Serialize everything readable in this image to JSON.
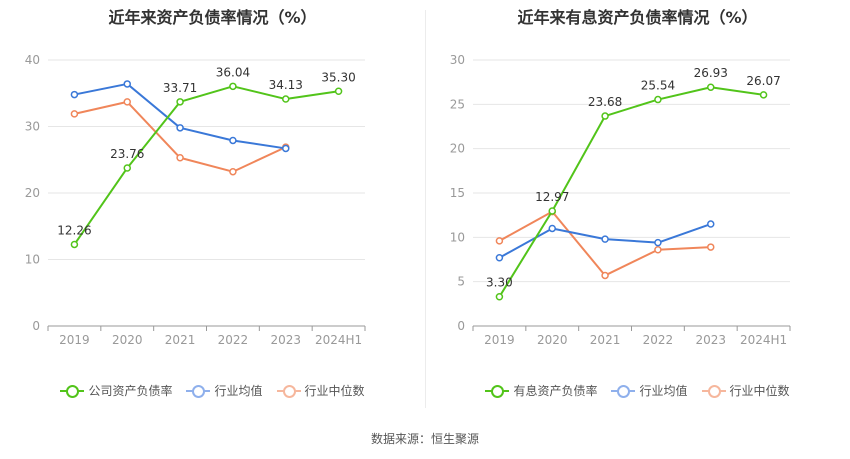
{
  "colors": {
    "green": "#52c41a",
    "blue": "#3a78d8",
    "orange": "#f0865a",
    "blue_legend": "#8fb0ec",
    "orange_legend": "#f6b79d",
    "grid": "#e6e6e6",
    "axis": "#999999",
    "tick": "#999999",
    "label": "#333333"
  },
  "source": "数据来源：恒生聚源",
  "chart_data": [
    {
      "type": "line",
      "title": "近年来资产负债率情况（%）",
      "categories": [
        "2019",
        "2020",
        "2021",
        "2022",
        "2023",
        "2024H1"
      ],
      "ylim": [
        0,
        40
      ],
      "yticks": [
        "0",
        "10",
        "20",
        "30",
        "40"
      ],
      "grid": true,
      "legend_position": "bottom",
      "series": [
        {
          "name": "公司资产负债率",
          "color_key": "green",
          "labeled": true,
          "values": [
            12.26,
            23.76,
            33.71,
            36.04,
            34.13,
            35.3
          ],
          "labels": [
            "12.26",
            "23.76",
            "33.71",
            "36.04",
            "34.13",
            "35.30"
          ]
        },
        {
          "name": "行业均值",
          "color_key": "blue",
          "labeled": false,
          "values": [
            34.8,
            36.4,
            29.8,
            27.9,
            26.7,
            null
          ]
        },
        {
          "name": "行业中位数",
          "color_key": "orange",
          "labeled": false,
          "values": [
            31.9,
            33.7,
            25.3,
            23.2,
            26.9,
            null
          ]
        }
      ]
    },
    {
      "type": "line",
      "title": "近年来有息资产负债率情况（%）",
      "categories": [
        "2019",
        "2020",
        "2021",
        "2022",
        "2023",
        "2024H1"
      ],
      "ylim": [
        0,
        30
      ],
      "yticks": [
        "0",
        "5",
        "10",
        "15",
        "20",
        "25",
        "30"
      ],
      "grid": true,
      "legend_position": "bottom",
      "series": [
        {
          "name": "有息资产负债率",
          "color_key": "green",
          "labeled": true,
          "values": [
            3.3,
            12.97,
            23.68,
            25.54,
            26.93,
            26.07
          ],
          "labels": [
            "3.30",
            "12.97",
            "23.68",
            "25.54",
            "26.93",
            "26.07"
          ]
        },
        {
          "name": "行业均值",
          "color_key": "blue",
          "labeled": false,
          "values": [
            7.7,
            11.0,
            9.8,
            9.4,
            11.5,
            null
          ]
        },
        {
          "name": "行业中位数",
          "color_key": "orange",
          "labeled": false,
          "values": [
            9.6,
            12.9,
            5.7,
            8.6,
            8.9,
            null
          ]
        }
      ]
    }
  ]
}
